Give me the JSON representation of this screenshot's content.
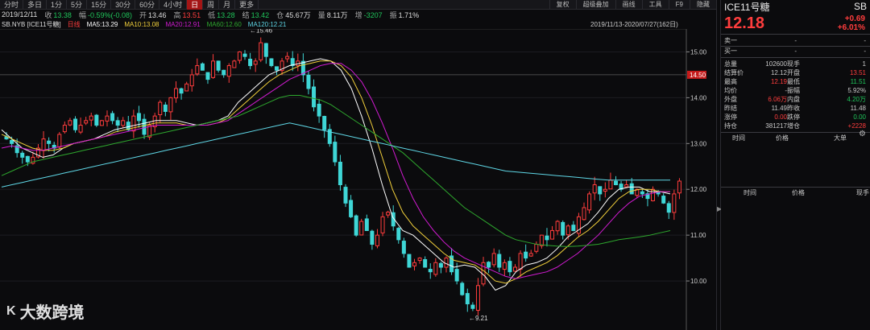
{
  "toolbar": {
    "timeframes": [
      "分时",
      "多日",
      "1分",
      "5分",
      "15分",
      "30分",
      "60分",
      "4小时",
      "日",
      "周",
      "月",
      "更多"
    ],
    "active": "日",
    "tools": [
      "复权",
      "超级叠加",
      "画线",
      "工具",
      "F9",
      "隐藏"
    ]
  },
  "info": {
    "date": "2019/12/11",
    "open_label": "收",
    "close_val": "13.38",
    "chg_label": "幅",
    "chg_val": "-0.59%(-0.08)",
    "o_label": "开",
    "o_val": "13.46",
    "h_label": "高",
    "h_val": "13.51",
    "l_label": "低",
    "l_val": "13.28",
    "c_label": "结",
    "c_val": "13.42",
    "amt_label": "仓",
    "amt_val": "45.67万",
    "vol_label": "量",
    "vol_val": "8.11万",
    "inc_label": "增",
    "inc_val": "-3207",
    "amp_label": "振",
    "amp_val": "1.71%"
  },
  "ma": {
    "symbol": "SB.NYB [ICE11号糖]",
    "tag": "日线",
    "ma5": "MA5:13.29",
    "ma10": "MA10:13.08",
    "ma20": "MA20:12.91",
    "ma60": "MA60:12.60",
    "ma120": "MA120:12.21",
    "range": "2019/11/13-2020/07/27(162日)"
  },
  "colors": {
    "ma5": "#ffffff",
    "ma10": "#f2d03b",
    "ma20": "#d21bd2",
    "ma60": "#2ea82e",
    "ma120": "#5fd7e6",
    "up": "#ff3d3d",
    "down": "#3fd6d6"
  },
  "chart": {
    "y_ticks": [
      "15.00",
      "14.00",
      "13.00",
      "12.00",
      "11.00",
      "10.00"
    ],
    "current_tag": "14.50",
    "high_label": "15.46",
    "low_label": "9.21"
  },
  "chart_data": {
    "type": "candlestick",
    "title": "",
    "ylim": [
      9.0,
      15.5
    ],
    "high_point": 15.46,
    "low_point": 9.21,
    "close_path": [
      13.1,
      13.0,
      12.8,
      12.7,
      12.6,
      12.7,
      12.9,
      13.1,
      13.0,
      12.9,
      13.2,
      13.4,
      13.5,
      13.3,
      13.4,
      13.5,
      13.6,
      13.4,
      13.5,
      13.6,
      13.5,
      13.4,
      13.5,
      13.3,
      13.6,
      13.5,
      13.2,
      13.4,
      13.6,
      13.9,
      13.7,
      14.0,
      14.2,
      14.1,
      14.3,
      14.5,
      14.7,
      14.6,
      14.4,
      14.8,
      14.6,
      14.5,
      14.7,
      14.8,
      15.0,
      14.9,
      14.7,
      14.8,
      15.2,
      14.9,
      14.7,
      14.6,
      14.8,
      14.9,
      14.7,
      14.8,
      14.5,
      14.2,
      13.8,
      13.6,
      13.3,
      13.0,
      12.6,
      12.1,
      11.7,
      11.4,
      11.0,
      11.3,
      11.1,
      10.8,
      11.0,
      11.4,
      11.5,
      11.2,
      10.9,
      10.6,
      10.3,
      10.4,
      10.5,
      10.3,
      10.2,
      10.4,
      10.3,
      10.5,
      10.2,
      10.0,
      9.7,
      9.5,
      9.4,
      9.9,
      10.4,
      10.3,
      10.6,
      10.3,
      10.4,
      10.2,
      10.3,
      10.6,
      10.5,
      10.6,
      10.8,
      11.0,
      10.9,
      11.1,
      11.3,
      11.0,
      11.2,
      11.1,
      11.4,
      11.6,
      11.9,
      12.1,
      11.9,
      12.0,
      12.2,
      12.1,
      12.0,
      12.1,
      11.9,
      12.0,
      11.9,
      11.8,
      12.0,
      11.9,
      11.7,
      11.5,
      11.9,
      12.18
    ],
    "series": [
      {
        "name": "MA5",
        "values": [
          13.3,
          13.1,
          12.9,
          12.8,
          12.7,
          12.75,
          12.9,
          13.0,
          13.05,
          13.1,
          13.2,
          13.3,
          13.35,
          13.4,
          13.45,
          13.5,
          13.5,
          13.5,
          13.45,
          13.4,
          13.45,
          13.5,
          13.6,
          13.9,
          14.1,
          14.3,
          14.5,
          14.6,
          14.7,
          14.75,
          14.8,
          14.85,
          14.8,
          14.6,
          14.2,
          13.6,
          12.9,
          12.1,
          11.4,
          11.1,
          11.0,
          10.8,
          10.6,
          10.4,
          10.3,
          10.35,
          10.3,
          10.1,
          9.8,
          9.9,
          10.2,
          10.35,
          10.4,
          10.5,
          10.7,
          10.95,
          11.1,
          11.25,
          11.5,
          11.8,
          12.0,
          12.05,
          12.05,
          11.95,
          11.95,
          11.9
        ]
      },
      {
        "name": "MA10",
        "values": [
          13.2,
          13.1,
          13.0,
          12.9,
          12.85,
          12.85,
          12.9,
          13.0,
          13.05,
          13.1,
          13.15,
          13.25,
          13.3,
          13.35,
          13.4,
          13.45,
          13.45,
          13.45,
          13.4,
          13.4,
          13.4,
          13.45,
          13.55,
          13.75,
          13.95,
          14.15,
          14.35,
          14.5,
          14.6,
          14.7,
          14.75,
          14.8,
          14.8,
          14.7,
          14.45,
          14.0,
          13.4,
          12.7,
          12.0,
          11.5,
          11.2,
          11.0,
          10.8,
          10.6,
          10.45,
          10.4,
          10.35,
          10.2,
          10.0,
          9.95,
          10.05,
          10.2,
          10.3,
          10.4,
          10.55,
          10.75,
          10.95,
          11.1,
          11.3,
          11.55,
          11.8,
          11.95,
          12.0,
          12.0,
          11.95,
          11.95
        ]
      },
      {
        "name": "MA20",
        "values": [
          12.9,
          12.95,
          12.9,
          12.85,
          12.85,
          12.9,
          12.95,
          13.0,
          13.05,
          13.1,
          13.15,
          13.2,
          13.25,
          13.3,
          13.35,
          13.4,
          13.4,
          13.4,
          13.4,
          13.4,
          13.4,
          13.45,
          13.5,
          13.65,
          13.8,
          13.95,
          14.1,
          14.25,
          14.4,
          14.5,
          14.6,
          14.7,
          14.75,
          14.75,
          14.6,
          14.35,
          13.95,
          13.45,
          12.9,
          12.3,
          11.8,
          11.4,
          11.1,
          10.85,
          10.65,
          10.5,
          10.4,
          10.3,
          10.2,
          10.1,
          10.05,
          10.1,
          10.15,
          10.2,
          10.3,
          10.45,
          10.6,
          10.8,
          11.0,
          11.25,
          11.5,
          11.7,
          11.85,
          11.9,
          11.95,
          11.95
        ]
      },
      {
        "name": "MA60",
        "values": [
          12.3,
          12.4,
          12.5,
          12.6,
          12.65,
          12.7,
          12.75,
          12.8,
          12.85,
          12.9,
          12.95,
          13.0,
          13.05,
          13.1,
          13.15,
          13.2,
          13.25,
          13.3,
          13.35,
          13.4,
          13.45,
          13.5,
          13.55,
          13.6,
          13.7,
          13.8,
          13.9,
          14.0,
          14.05,
          14.05,
          14.0,
          13.95,
          13.85,
          13.7,
          13.55,
          13.4,
          13.25,
          13.1,
          12.95,
          12.8,
          12.6,
          12.4,
          12.2,
          12.0,
          11.8,
          11.6,
          11.45,
          11.3,
          11.15,
          11.0,
          10.9,
          10.85,
          10.8,
          10.78,
          10.76,
          10.75,
          10.76,
          10.78,
          10.8,
          10.85,
          10.9,
          10.93,
          10.96,
          11.0,
          11.05,
          11.1
        ]
      },
      {
        "name": "MA120",
        "values": [
          12.05,
          12.1,
          12.15,
          12.2,
          12.25,
          12.3,
          12.35,
          12.4,
          12.45,
          12.5,
          12.55,
          12.6,
          12.65,
          12.7,
          12.75,
          12.8,
          12.85,
          12.9,
          12.95,
          13.0,
          13.05,
          13.1,
          13.15,
          13.2,
          13.25,
          13.3,
          13.35,
          13.4,
          13.45,
          13.4,
          13.35,
          13.3,
          13.25,
          13.2,
          13.15,
          13.1,
          13.05,
          13.0,
          12.95,
          12.9,
          12.85,
          12.8,
          12.75,
          12.7,
          12.65,
          12.6,
          12.55,
          12.5,
          12.45,
          12.4,
          12.38,
          12.36,
          12.34,
          12.32,
          12.3,
          12.28,
          12.26,
          12.24,
          12.22,
          12.2,
          12.2,
          12.2,
          12.2,
          12.2,
          12.2,
          12.2
        ]
      }
    ]
  },
  "panel": {
    "title": "ICE11号糖",
    "code": "SB",
    "price": "12.18",
    "chg": "+0.69",
    "pct": "+6.01%",
    "sell": [
      "卖一",
      "-",
      "-"
    ],
    "buy": [
      "买一",
      "-",
      "-"
    ],
    "rows": [
      [
        "总量",
        "102600",
        "现手",
        "1"
      ],
      [
        "结算价",
        "12.12",
        "开盘",
        "13.51"
      ],
      [
        "最高",
        "12.19",
        "最低",
        "11.51"
      ],
      [
        "均价",
        "-",
        "振幅",
        "5.92%"
      ],
      [
        "外盘",
        "6.06万",
        "内盘",
        "4.20万"
      ],
      [
        "昨结",
        "11.49",
        "昨收",
        "11.48"
      ],
      [
        "涨停",
        "0.00",
        "跌停",
        "0.00"
      ],
      [
        "持仓",
        "381217",
        "增仓",
        "+2228"
      ]
    ],
    "thead1": [
      "时间",
      "价格",
      "大单"
    ],
    "thead2": [
      "时间",
      "价格",
      "现手"
    ]
  },
  "sidebar_arrow": "▶",
  "logo": {
    "mark": "K",
    "text": "大数跨境"
  }
}
